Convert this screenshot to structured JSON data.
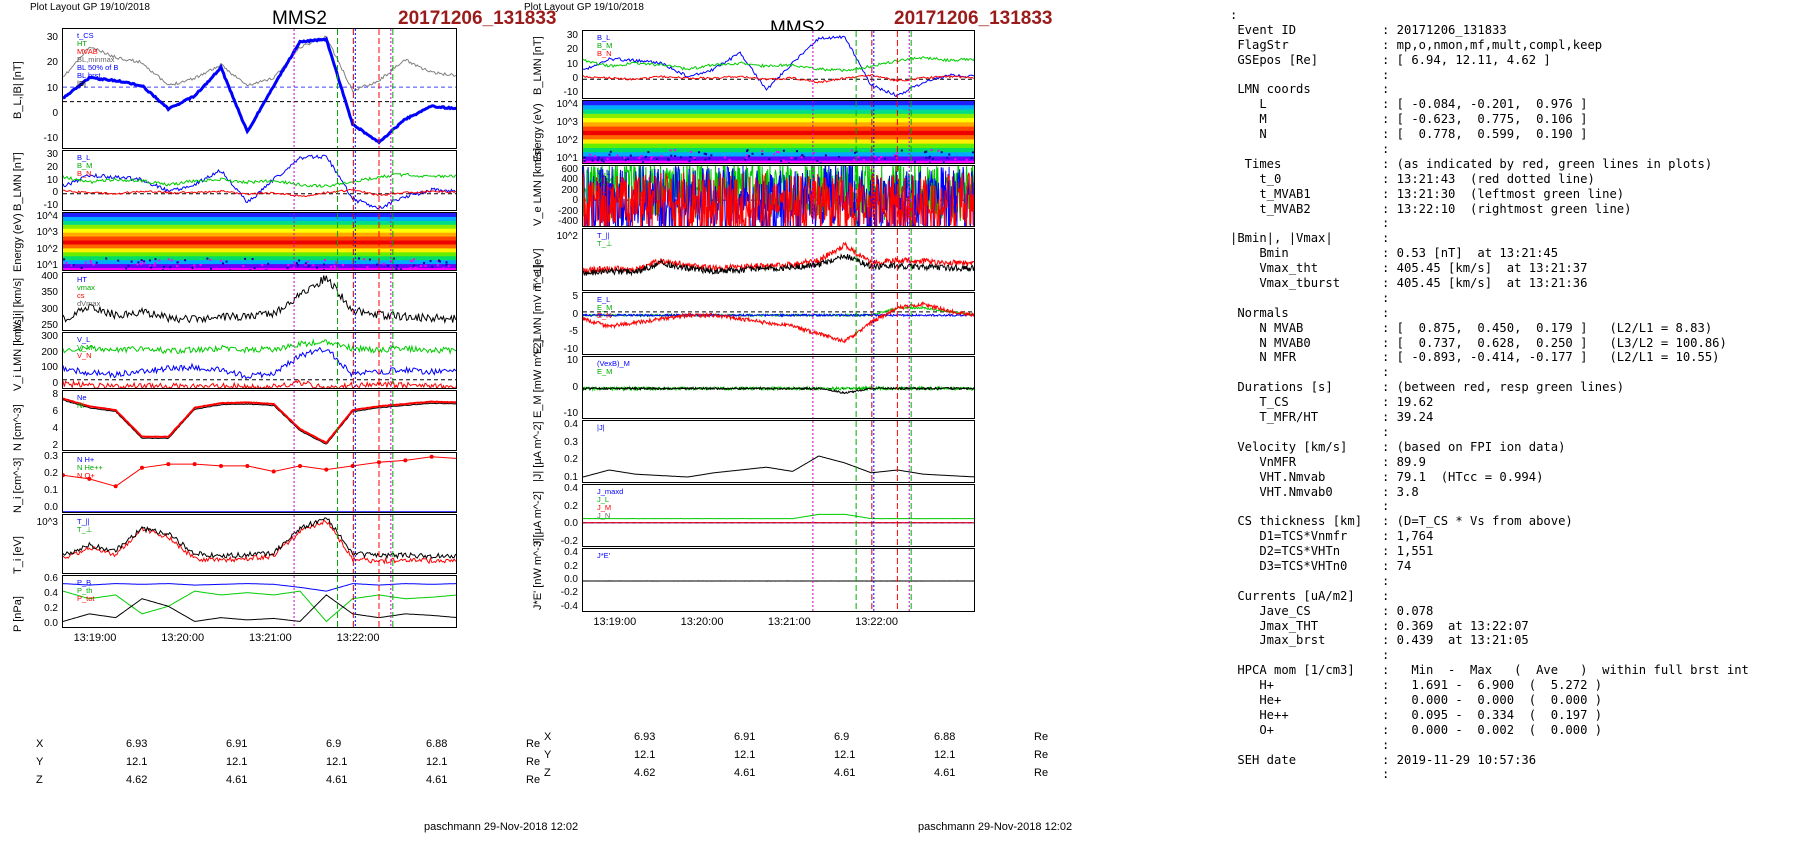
{
  "left_plot": {
    "layout_label": "Plot Layout GP 19/10/2018",
    "spacecraft": "MMS2",
    "event": "20171206_131833",
    "footer": "paschmann 29-Nov-2018 12:02",
    "time_ticks": [
      "13:19:00",
      "13:20:00",
      "13:21:00",
      "13:22:00"
    ],
    "panels": [
      {
        "ylabel": "B_L,|B| [nT]",
        "ticks": [
          "30",
          "20",
          "10",
          "0",
          "-10"
        ],
        "legend": [
          "t_CS",
          "HT",
          "MVAB",
          "BL,minmax",
          "BL 50% of B",
          "BL brst",
          "|B|"
        ]
      },
      {
        "ylabel": "B_LMN [nT]",
        "ticks": [
          "30",
          "20",
          "10",
          "0",
          "-10"
        ],
        "legend": [
          "B_L",
          "B_M",
          "B_N"
        ]
      },
      {
        "ylabel": "Energy (eV)",
        "ticks": [
          "10^4",
          "10^3",
          "10^2",
          "10^1"
        ],
        "legend": []
      },
      {
        "ylabel": "|V_i| [km/s]",
        "ticks": [
          "400",
          "350",
          "300",
          "250"
        ],
        "legend": [
          "HT",
          "vmax",
          "cs",
          "dVmax"
        ]
      },
      {
        "ylabel": "V_i LMN [km/s]",
        "ticks": [
          "300",
          "200",
          "100",
          "0"
        ],
        "legend": [
          "V_L",
          "V_M",
          "V_N"
        ]
      },
      {
        "ylabel": "N [cm^-3]",
        "ticks": [
          "8",
          "6",
          "4",
          "2"
        ],
        "legend": [
          "Ne",
          "Ni"
        ]
      },
      {
        "ylabel": "N_i [cm^-3]",
        "ticks": [
          "0.3",
          "0.2",
          "0.1",
          "0.0"
        ],
        "legend": [
          "N H+",
          "N He++",
          "N O+"
        ]
      },
      {
        "ylabel": "T_i [eV]",
        "ticks": [
          "10^3"
        ],
        "legend": [
          "T_||",
          "T_⊥"
        ]
      },
      {
        "ylabel": "P [nPa]",
        "ticks": [
          "0.6",
          "0.4",
          "0.2",
          "0.0"
        ],
        "legend": [
          "P_B",
          "P_th",
          "P_tot"
        ]
      }
    ],
    "orbit": {
      "rows": [
        {
          "label": "X",
          "values": [
            "6.93",
            "6.91",
            "6.9",
            "6.88"
          ],
          "unit": "Re"
        },
        {
          "label": "Y",
          "values": [
            "12.1",
            "12.1",
            "12.1",
            "12.1"
          ],
          "unit": "Re"
        },
        {
          "label": "Z",
          "values": [
            "4.62",
            "4.61",
            "4.61",
            "4.61"
          ],
          "unit": "Re"
        }
      ]
    }
  },
  "right_plot": {
    "layout_label": "Plot Layout GP 19/10/2018",
    "spacecraft": "MMS2",
    "event": "20171206_131833",
    "footer": "paschmann 29-Nov-2018 12:02",
    "time_ticks": [
      "13:19:00",
      "13:20:00",
      "13:21:00",
      "13:22:00"
    ],
    "panels": [
      {
        "ylabel": "B_LMN [nT]",
        "ticks": [
          "30",
          "20",
          "10",
          "0",
          "-10"
        ],
        "legend": [
          "B_L",
          "B_M",
          "B_N"
        ]
      },
      {
        "ylabel": "Energy (eV)",
        "ticks": [
          "10^4",
          "10^3",
          "10^2",
          "10^1"
        ],
        "legend": []
      },
      {
        "ylabel": "V_e LMN [km/s]",
        "ticks": [
          "600",
          "400",
          "200",
          "0",
          "-200",
          "-400"
        ],
        "legend": [
          "V_L",
          "V_M",
          "V_N"
        ]
      },
      {
        "ylabel": "T_e [eV]",
        "ticks": [
          "10^2"
        ],
        "legend": [
          "T_||",
          "T_⊥"
        ]
      },
      {
        "ylabel": "E_LMN [mV m^-1]",
        "ticks": [
          "5",
          "0",
          "-5",
          "-10"
        ],
        "legend": [
          "E_L",
          "E_M",
          "E_N"
        ]
      },
      {
        "ylabel": "E_M [mW m^-2]",
        "ticks": [
          "10",
          "0",
          "-10"
        ],
        "legend": [
          "(VexB)_M",
          "E_M"
        ]
      },
      {
        "ylabel": "|J| [μA m^-2]",
        "ticks": [
          "0.4",
          "0.3",
          "0.2",
          "0.1"
        ],
        "legend": [
          "|J|"
        ]
      },
      {
        "ylabel": "J [μA m^-2]",
        "ticks": [
          "0.4",
          "0.2",
          "0.0",
          "-0.2"
        ],
        "legend": [
          "J_maxd",
          "J_L",
          "J_M",
          "J_N"
        ]
      },
      {
        "ylabel": "J*E' [nW m^-3]",
        "ticks": [
          "0.4",
          "0.2",
          "0.0",
          "-0.2",
          "-0.4"
        ],
        "legend": [
          "J*E'"
        ]
      }
    ],
    "orbit": {
      "rows": [
        {
          "label": "X",
          "values": [
            "6.93",
            "6.91",
            "6.9",
            "6.88"
          ],
          "unit": "Re"
        },
        {
          "label": "Y",
          "values": [
            "12.1",
            "12.1",
            "12.1",
            "12.1"
          ],
          "unit": "Re"
        },
        {
          "label": "Z",
          "values": [
            "4.62",
            "4.61",
            "4.61",
            "4.61"
          ],
          "unit": "Re"
        }
      ]
    }
  },
  "info_lines": [
    {
      "k": ":",
      "v": ""
    },
    {
      "k": " Event ID",
      "v": ": 20171206_131833"
    },
    {
      "k": " FlagStr",
      "v": ": mp,o,nmon,mf,mult,compl,keep"
    },
    {
      "k": " GSEpos [Re]",
      "v": ": [ 6.94, 12.11, 4.62 ]"
    },
    {
      "k": "",
      "v": ":"
    },
    {
      "k": " LMN coords",
      "v": ":"
    },
    {
      "k": "    L",
      "v": ": [ -0.084, -0.201,  0.976 ]"
    },
    {
      "k": "    M",
      "v": ": [ -0.623,  0.775,  0.106 ]"
    },
    {
      "k": "    N",
      "v": ": [  0.778,  0.599,  0.190 ]"
    },
    {
      "k": "",
      "v": ":"
    },
    {
      "k": "  Times",
      "v": ": (as indicated by red, green lines in plots)"
    },
    {
      "k": "    t_0",
      "v": ": 13:21:43  (red dotted line)"
    },
    {
      "k": "    t_MVAB1",
      "v": ": 13:21:30  (leftmost green line)"
    },
    {
      "k": "    t_MVAB2",
      "v": ": 13:22:10  (rightmost green line)"
    },
    {
      "k": "",
      "v": ":"
    },
    {
      "k": "|Bmin|, |Vmax|",
      "v": ":"
    },
    {
      "k": "    Bmin",
      "v": ": 0.53 [nT]  at 13:21:45"
    },
    {
      "k": "    Vmax_tht",
      "v": ": 405.45 [km/s]  at 13:21:37"
    },
    {
      "k": "    Vmax_tburst",
      "v": ": 405.45 [km/s]  at 13:21:36"
    },
    {
      "k": "",
      "v": ":"
    },
    {
      "k": " Normals",
      "v": ":"
    },
    {
      "k": "    N MVAB",
      "v": ": [  0.875,  0.450,  0.179 ]   (L2/L1 = 8.83)"
    },
    {
      "k": "    N MVAB0",
      "v": ": [  0.737,  0.628,  0.250 ]   (L3/L2 = 100.86)"
    },
    {
      "k": "    N MFR",
      "v": ": [ -0.893, -0.414, -0.177 ]   (L2/L1 = 10.55)"
    },
    {
      "k": "",
      "v": ":"
    },
    {
      "k": " Durations [s]",
      "v": ": (between red, resp green lines)"
    },
    {
      "k": "    T_CS",
      "v": ": 19.62"
    },
    {
      "k": "    T_MFR/HT",
      "v": ": 39.24"
    },
    {
      "k": "",
      "v": ":"
    },
    {
      "k": " Velocity [km/s]",
      "v": ": (based on FPI ion data)"
    },
    {
      "k": "    VnMFR",
      "v": ": 89.9"
    },
    {
      "k": "    VHT.Nmvab",
      "v": ": 79.1  (HTcc = 0.994)"
    },
    {
      "k": "    VHT.Nmvab0",
      "v": ": 3.8"
    },
    {
      "k": "",
      "v": ":"
    },
    {
      "k": " CS thickness [km]",
      "v": ": (D=T_CS * Vs from above)"
    },
    {
      "k": "    D1=TCS*Vnmfr",
      "v": ": 1,764"
    },
    {
      "k": "    D2=TCS*VHTn",
      "v": ": 1,551"
    },
    {
      "k": "    D3=TCS*VHTn0",
      "v": ": 74"
    },
    {
      "k": "",
      "v": ":"
    },
    {
      "k": " Currents [uA/m2]",
      "v": ":"
    },
    {
      "k": "    Jave_CS",
      "v": ": 0.078"
    },
    {
      "k": "    Jmax_THT",
      "v": ": 0.369  at 13:22:07"
    },
    {
      "k": "    Jmax_brst",
      "v": ": 0.439  at 13:21:05"
    },
    {
      "k": "",
      "v": ":"
    },
    {
      "k": " HPCA mom [1/cm3]",
      "v": ":   Min  -  Max   (  Ave   )  within full brst int"
    },
    {
      "k": "    H+",
      "v": ":   1.691 -  6.900  (  5.272 )"
    },
    {
      "k": "    He+",
      "v": ":   0.000 -  0.000  (  0.000 )"
    },
    {
      "k": "    He++",
      "v": ":   0.095 -  0.334  (  0.197 )"
    },
    {
      "k": "    O+",
      "v": ":   0.000 -  0.002  (  0.000 )"
    },
    {
      "k": "",
      "v": ":"
    },
    {
      "k": " SEH date",
      "v": ": 2019-11-29 10:57:36"
    },
    {
      "k": "",
      "v": ":"
    }
  ],
  "chart_data": [
    {
      "type": "line",
      "title": "MMS2 20171206_131833",
      "x_ticks": [
        "13:19:00",
        "13:20:00",
        "13:21:00",
        "13:22:00"
      ],
      "event_times": {
        "t_0": "13:21:43",
        "t_MVAB1": "13:21:30",
        "t_MVAB2": "13:22:10"
      },
      "colors": {
        "L": "#0000ff",
        "M": "#00cc00",
        "N": "#ff0000",
        "B": "#808080",
        "black": "#000000"
      },
      "series": [
        {
          "name": "B_L",
          "values": [
            5,
            13,
            12,
            10,
            1,
            6,
            17,
            -8,
            10,
            27,
            28,
            -5,
            -12,
            -3,
            2,
            1
          ]
        },
        {
          "name": "|B|",
          "values": [
            13,
            25,
            21,
            19,
            10,
            13,
            18,
            10,
            13,
            25,
            29,
            8,
            12,
            20,
            15,
            14
          ]
        },
        {
          "name": "|V_i|",
          "values": [
            262,
            300,
            275,
            285,
            265,
            260,
            270,
            268,
            280,
            340,
            395,
            290,
            275,
            270,
            265,
            262
          ]
        },
        {
          "name": "Ne",
          "values": [
            8,
            7,
            6.5,
            3,
            3,
            6.8,
            7.4,
            7.5,
            7.3,
            4,
            2.2,
            6.5,
            7,
            7.3,
            7.6,
            7.5
          ]
        },
        {
          "name": "N_i He++",
          "values": [
            0.21,
            0.19,
            0.15,
            0.25,
            0.27,
            0.27,
            0.26,
            0.26,
            0.23,
            0.26,
            0.24,
            0.26,
            0.28,
            0.29,
            0.31,
            0.3
          ]
        }
      ]
    },
    {
      "type": "line",
      "title": "MMS2 20171206_131833",
      "x_ticks": [
        "13:19:00",
        "13:20:00",
        "13:21:00",
        "13:22:00"
      ],
      "series": [
        {
          "name": "V_L",
          "values": [
            50,
            20,
            80,
            60,
            10,
            40,
            60,
            -50,
            0,
            60,
            300,
            -150,
            -50,
            20,
            30,
            10
          ]
        },
        {
          "name": "|J|",
          "values": [
            0.05,
            0.1,
            0.07,
            0.06,
            0.05,
            0.08,
            0.1,
            0.12,
            0.09,
            0.2,
            0.15,
            0.08,
            0.1,
            0.07,
            0.06,
            0.05
          ]
        }
      ]
    }
  ]
}
